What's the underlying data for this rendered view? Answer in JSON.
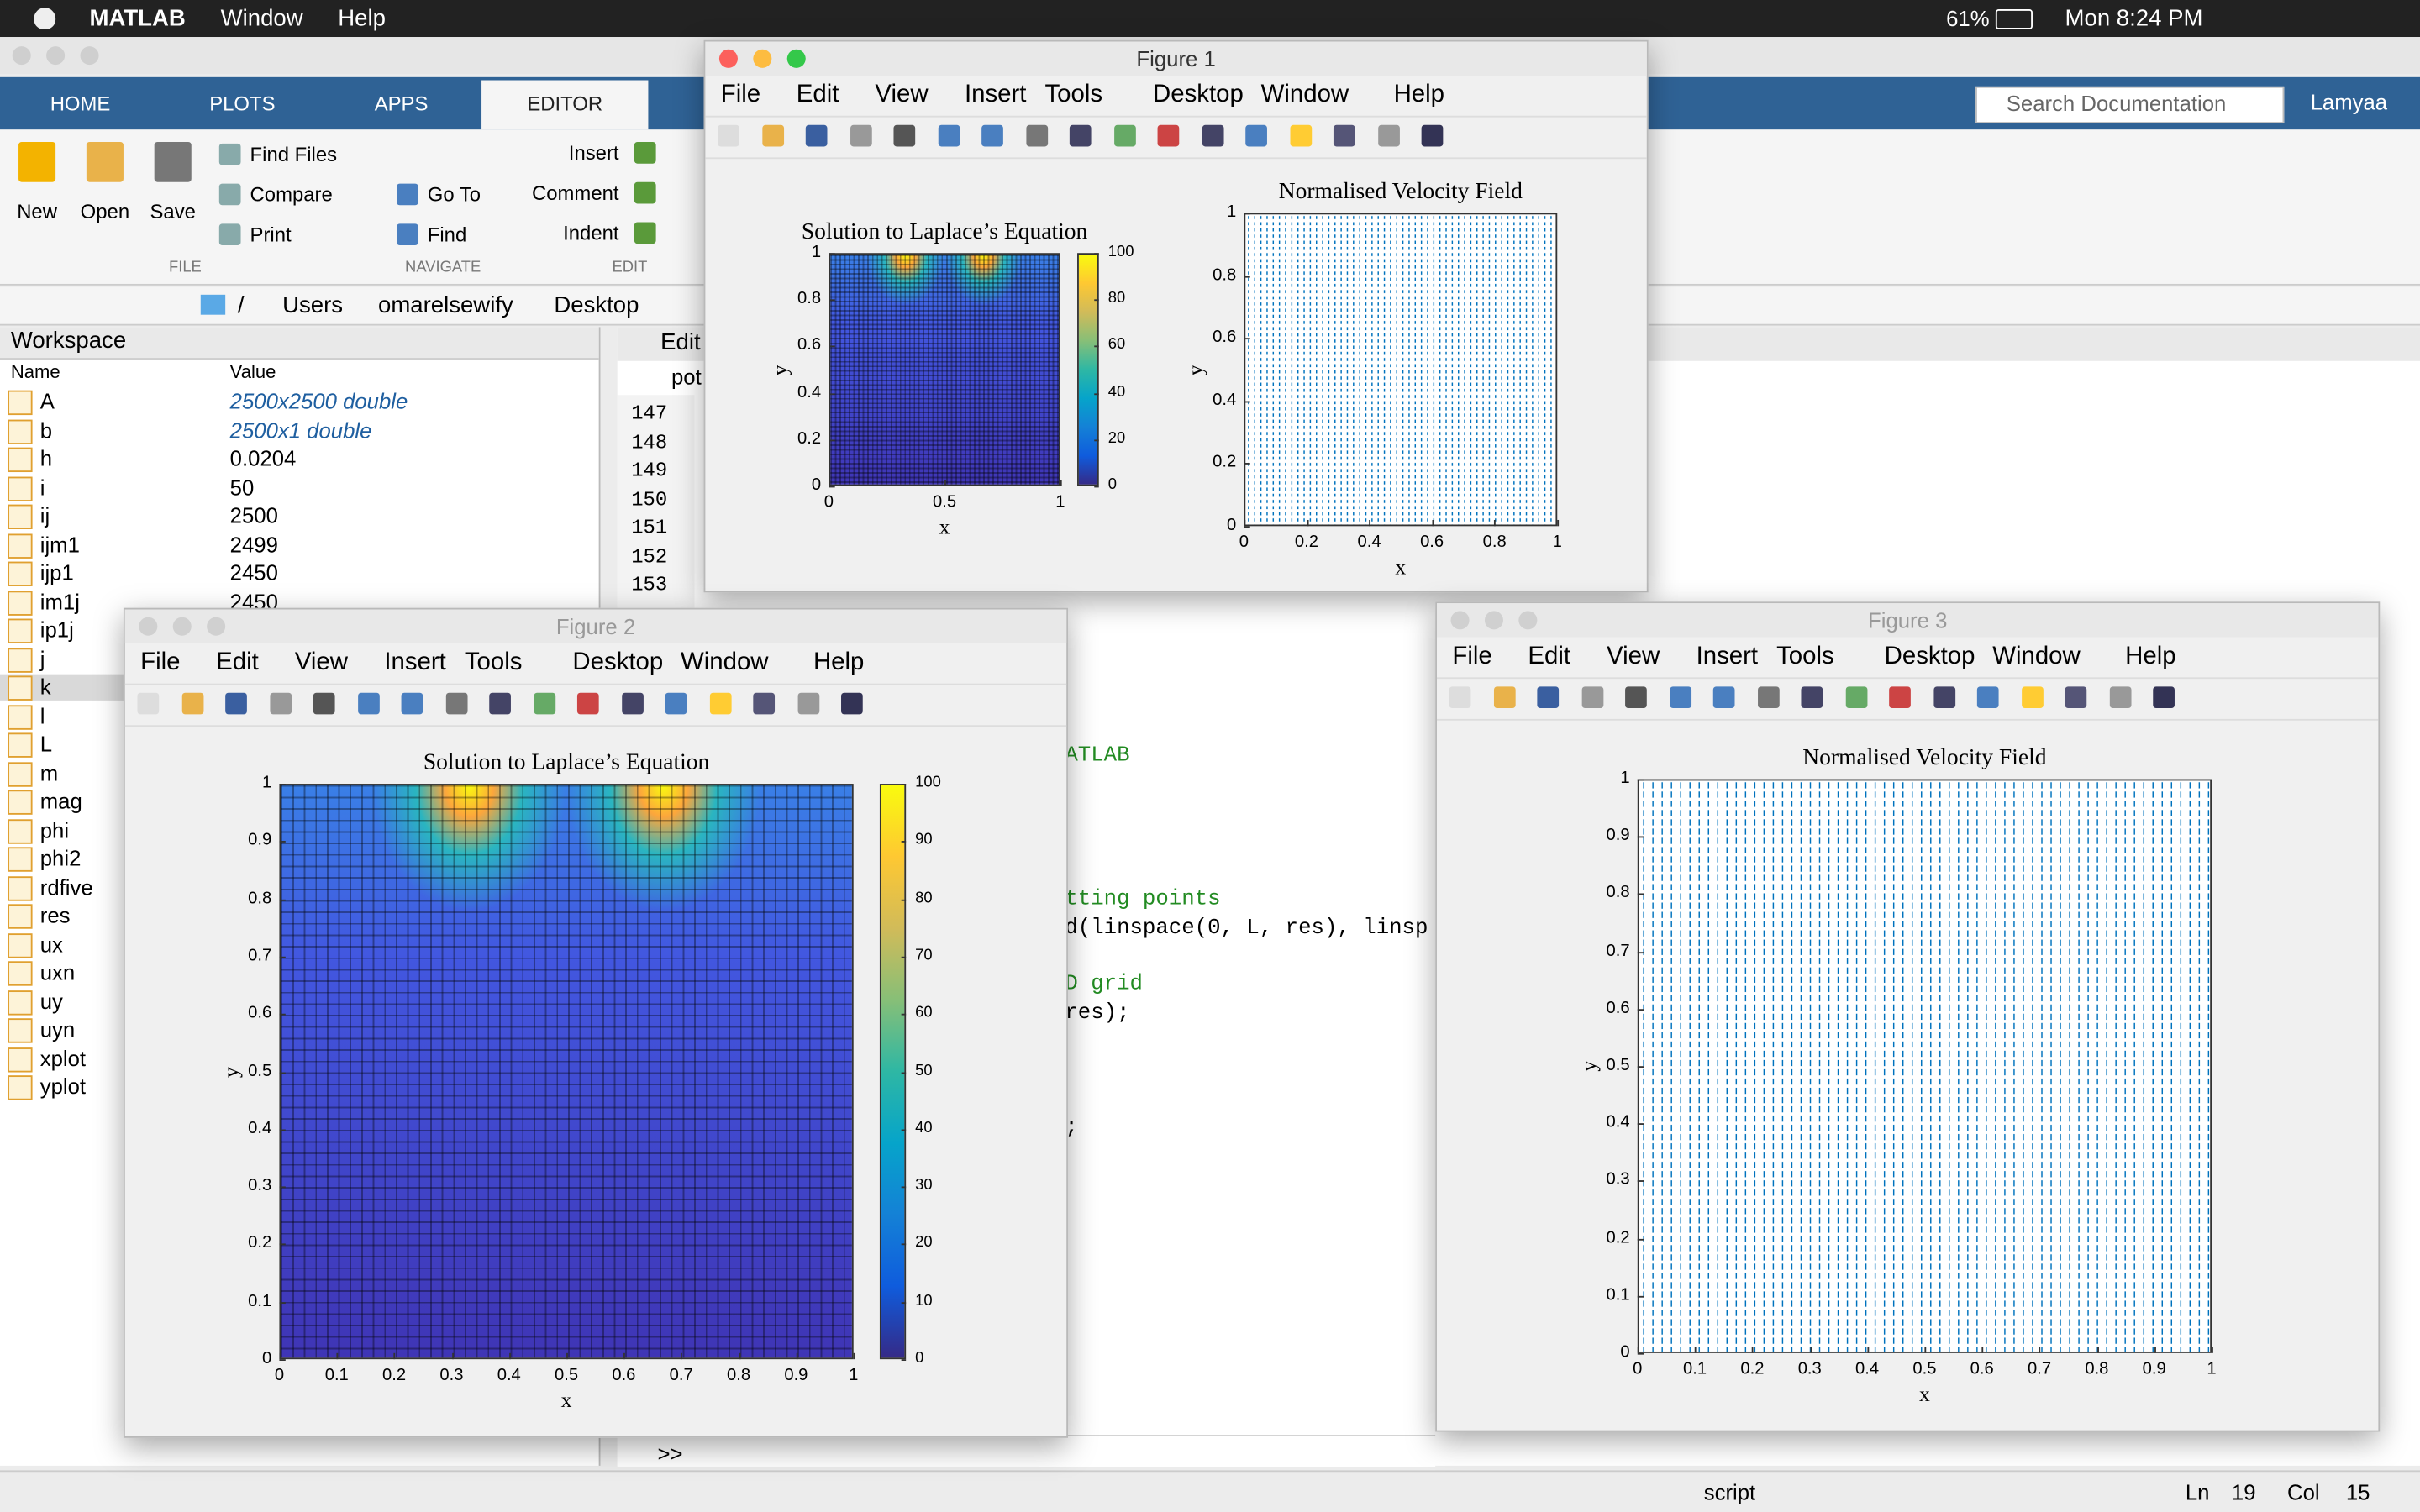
{
  "menubar": {
    "app": "MATLAB",
    "menus": [
      "Window",
      "Help"
    ],
    "battery": "61%",
    "clock": "Mon 8:24 PM"
  },
  "toolstrip": {
    "tabs": [
      "HOME",
      "PLOTS",
      "APPS",
      "EDITOR"
    ],
    "file": {
      "big": [
        "New",
        "Open",
        "Save"
      ],
      "small": [
        "Find Files",
        "Compare",
        "Print"
      ],
      "label": "FILE"
    },
    "navigate": {
      "small": [
        "Go To",
        "Find"
      ],
      "label": "NAVIGATE"
    },
    "edit": {
      "small": [
        "Insert",
        "Comment",
        "Indent"
      ],
      "label": "EDIT"
    },
    "search": "Search Documentation",
    "user": "Lamyaa"
  },
  "path": [
    "/",
    "Users",
    "omarelsewify",
    "Desktop"
  ],
  "workspace": {
    "title": "Workspace",
    "columns": [
      "Name",
      "Value"
    ],
    "rows": [
      {
        "name": "A",
        "value": "2500x2500 double"
      },
      {
        "name": "b",
        "value": "2500x1 double"
      },
      {
        "name": "h",
        "value": "0.0204"
      },
      {
        "name": "i",
        "value": "50"
      },
      {
        "name": "ij",
        "value": "2500"
      },
      {
        "name": "ijm1",
        "value": "2499"
      },
      {
        "name": "ijp1",
        "value": "2450"
      },
      {
        "name": "im1j",
        "value": "2450"
      },
      {
        "name": "ip1j"
      },
      {
        "name": "j"
      },
      {
        "name": "k"
      },
      {
        "name": "l"
      },
      {
        "name": "L"
      },
      {
        "name": "m"
      },
      {
        "name": "mag"
      },
      {
        "name": "phi"
      },
      {
        "name": "phi2"
      },
      {
        "name": "rdfive"
      },
      {
        "name": "res"
      },
      {
        "name": "ux"
      },
      {
        "name": "uxn"
      },
      {
        "name": "uy"
      },
      {
        "name": "uyn"
      },
      {
        "name": "xplot"
      },
      {
        "name": "yplot"
      }
    ]
  },
  "editor": {
    "tab": "Edit",
    "file_tab": "pot",
    "line_numbers": [
      "147",
      "148",
      "149",
      "150",
      "151",
      "152",
      "153"
    ],
    "code": [
      "ATLAB",
      "tting points",
      "d(linspace(0, L, res), linsp",
      "D grid",
      " res);",
      ";"
    ]
  },
  "command_prompt": ">>",
  "status": {
    "mode": "script",
    "ln_label": "Ln",
    "ln": "19",
    "col_label": "Col",
    "col": "15"
  },
  "figures": [
    {
      "title": "Figure 1",
      "menus": [
        "File",
        "Edit",
        "View",
        "Insert",
        "Tools",
        "Desktop",
        "Window",
        "Help"
      ],
      "axes": [
        {
          "title": "Solution to Laplace’s Equation",
          "xlabel": "x",
          "ylabel": "y",
          "xticks": [
            0,
            0.5,
            1
          ],
          "yticks": [
            0,
            0.2,
            0.4,
            0.6,
            0.8,
            1
          ],
          "colorbar_ticks": [
            0,
            20,
            40,
            60,
            80,
            100
          ]
        },
        {
          "title": "Normalised Velocity Field",
          "xlabel": "x",
          "ylabel": "y",
          "xticks": [
            0,
            0.2,
            0.4,
            0.6,
            0.8,
            1
          ],
          "yticks": [
            0,
            0.2,
            0.4,
            0.6,
            0.8,
            1
          ]
        }
      ]
    },
    {
      "title": "Figure 2",
      "menus": [
        "File",
        "Edit",
        "View",
        "Insert",
        "Tools",
        "Desktop",
        "Window",
        "Help"
      ],
      "axes": [
        {
          "title": "Solution to Laplace’s Equation",
          "xlabel": "x",
          "ylabel": "y",
          "xticks": [
            0,
            0.1,
            0.2,
            0.3,
            0.4,
            0.5,
            0.6,
            0.7,
            0.8,
            0.9,
            1
          ],
          "yticks": [
            0,
            0.1,
            0.2,
            0.3,
            0.4,
            0.5,
            0.6,
            0.7,
            0.8,
            0.9,
            1
          ],
          "colorbar_ticks": [
            0,
            10,
            20,
            30,
            40,
            50,
            60,
            70,
            80,
            90,
            100
          ]
        }
      ]
    },
    {
      "title": "Figure 3",
      "menus": [
        "File",
        "Edit",
        "View",
        "Insert",
        "Tools",
        "Desktop",
        "Window",
        "Help"
      ],
      "axes": [
        {
          "title": "Normalised Velocity Field",
          "xlabel": "x",
          "ylabel": "y",
          "xticks": [
            0,
            0.1,
            0.2,
            0.3,
            0.4,
            0.5,
            0.6,
            0.7,
            0.8,
            0.9,
            1
          ],
          "yticks": [
            0,
            0.1,
            0.2,
            0.3,
            0.4,
            0.5,
            0.6,
            0.7,
            0.8,
            0.9,
            1
          ]
        }
      ]
    }
  ]
}
